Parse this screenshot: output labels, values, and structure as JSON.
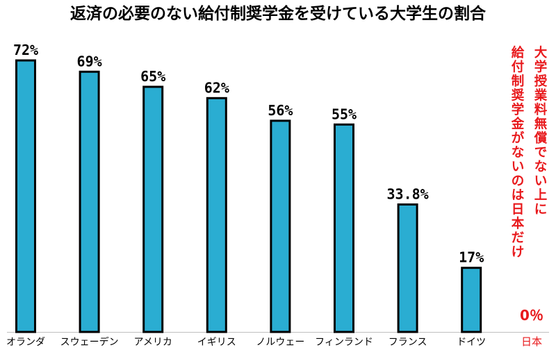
{
  "chart_data": {
    "type": "bar",
    "title": "返済の必要のない給付制奨学金を受けている大学生の割合",
    "categories": [
      "オランダ",
      "スウェーデン",
      "アメリカ",
      "イギリス",
      "ノルウェー",
      "フィンランド",
      "フランス",
      "ドイツ"
    ],
    "values": [
      72,
      69,
      65,
      62,
      56,
      55,
      33.8,
      17
    ],
    "value_labels": [
      "72%",
      "69%",
      "65%",
      "62%",
      "56%",
      "55%",
      "33.8%",
      "17%"
    ],
    "ylim": [
      0,
      72
    ],
    "bar_color": "#2aadd2",
    "grid": false,
    "japan": {
      "category": "日本",
      "value": 0,
      "value_label": "0％",
      "annotation_columns": [
        "大学授業料無償でない上に",
        "給付制奨学金がないのは日本だけ"
      ],
      "color": "#e8191c"
    }
  }
}
